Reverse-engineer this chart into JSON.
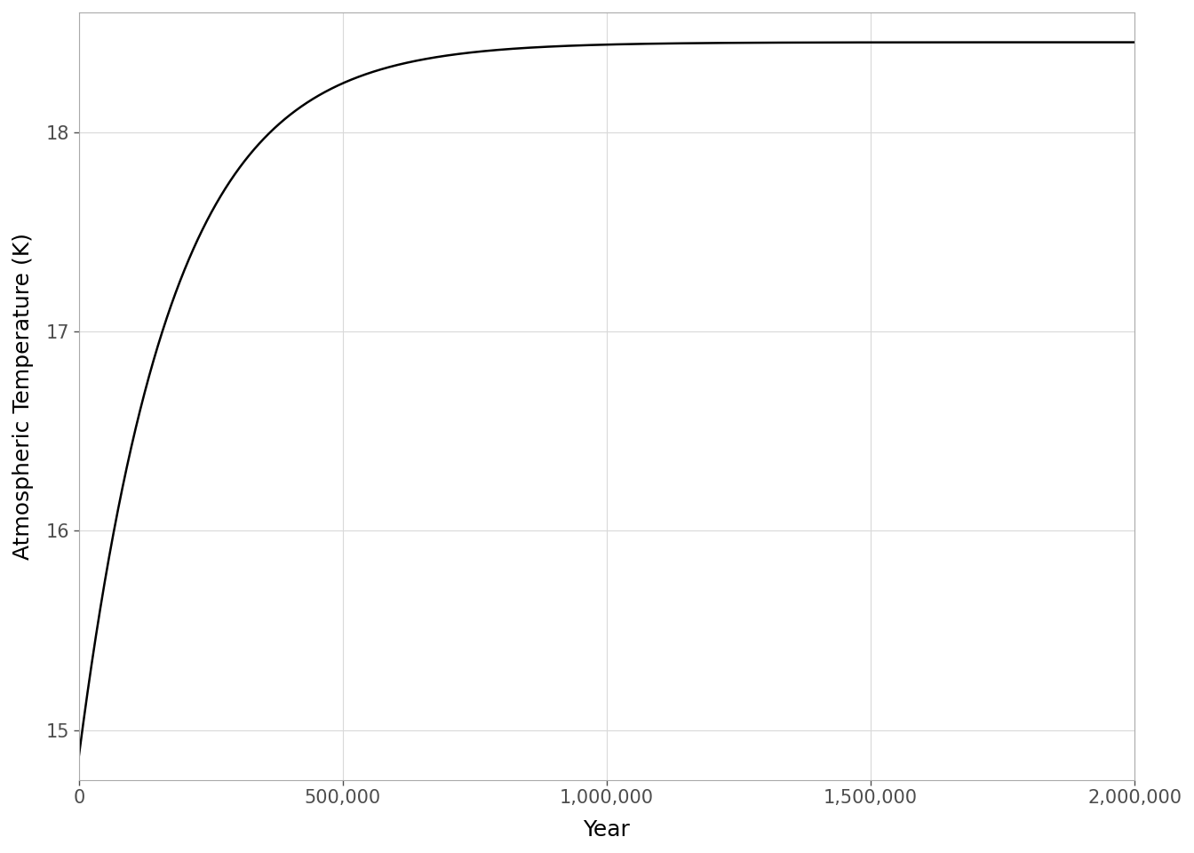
{
  "title": "",
  "xlabel": "Year",
  "ylabel": "Atmospheric Temperature (K)",
  "x_min": 0,
  "x_max": 2000000,
  "y_min": 14.75,
  "y_max": 18.6,
  "T0": 14.87,
  "T_asymptote": 18.45,
  "tau": 175000,
  "line_color": "#000000",
  "line_width": 1.8,
  "background_color": "#ffffff",
  "panel_background": "#ffffff",
  "grid_color": "#d9d9d9",
  "tick_label_color": "#4d4d4d",
  "x_ticks": [
    0,
    500000,
    1000000,
    1500000,
    2000000
  ],
  "y_ticks": [
    15,
    16,
    17,
    18
  ],
  "xlabel_fontsize": 18,
  "ylabel_fontsize": 18,
  "tick_fontsize": 15,
  "font_family": "DejaVu Sans"
}
